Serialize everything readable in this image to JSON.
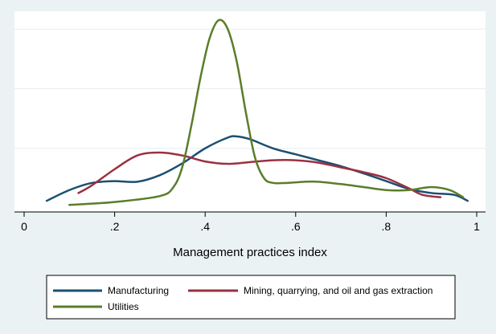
{
  "chart_data": {
    "type": "line",
    "title": "",
    "xlabel": "Management practices index",
    "ylabel": "",
    "xlim": [
      0,
      1
    ],
    "ylim": [
      0,
      3.3
    ],
    "x_ticks": [
      0,
      0.2,
      0.4,
      0.6,
      0.8,
      1
    ],
    "x_tick_labels": [
      "0",
      ".2",
      ".4",
      ".6",
      ".8",
      "1"
    ],
    "y_gridlines": [
      1,
      2,
      3
    ],
    "grid": true,
    "legend_position": "bottom",
    "colors": {
      "background": "#eaf2f3",
      "plot_area": "#ffffff",
      "gridline": "#e6eef0"
    },
    "series": [
      {
        "name": "Manufacturing",
        "color": "#1b4f72",
        "x": [
          0.05,
          0.1,
          0.15,
          0.2,
          0.25,
          0.3,
          0.35,
          0.4,
          0.45,
          0.47,
          0.5,
          0.55,
          0.6,
          0.65,
          0.7,
          0.75,
          0.8,
          0.85,
          0.9,
          0.95,
          0.98
        ],
        "y": [
          0.12,
          0.3,
          0.42,
          0.45,
          0.44,
          0.55,
          0.75,
          1.0,
          1.18,
          1.2,
          1.15,
          1.0,
          0.9,
          0.8,
          0.7,
          0.58,
          0.45,
          0.32,
          0.25,
          0.22,
          0.12
        ]
      },
      {
        "name": "Mining, quarrying, and oil and gas extraction",
        "color": "#9b3040",
        "x": [
          0.12,
          0.15,
          0.2,
          0.25,
          0.3,
          0.35,
          0.4,
          0.45,
          0.5,
          0.55,
          0.6,
          0.65,
          0.7,
          0.75,
          0.8,
          0.85,
          0.88,
          0.92
        ],
        "y": [
          0.25,
          0.38,
          0.65,
          0.88,
          0.93,
          0.88,
          0.78,
          0.74,
          0.77,
          0.8,
          0.8,
          0.76,
          0.68,
          0.6,
          0.5,
          0.33,
          0.22,
          0.18
        ]
      },
      {
        "name": "Utilities",
        "color": "#5a7d2a",
        "x": [
          0.1,
          0.2,
          0.3,
          0.33,
          0.35,
          0.37,
          0.39,
          0.41,
          0.43,
          0.45,
          0.47,
          0.49,
          0.51,
          0.53,
          0.55,
          0.58,
          0.62,
          0.65,
          0.7,
          0.75,
          0.8,
          0.85,
          0.9,
          0.94,
          0.97
        ],
        "y": [
          0.05,
          0.1,
          0.2,
          0.35,
          0.7,
          1.4,
          2.2,
          2.85,
          3.15,
          3.0,
          2.45,
          1.6,
          0.85,
          0.5,
          0.42,
          0.42,
          0.44,
          0.44,
          0.4,
          0.35,
          0.3,
          0.3,
          0.35,
          0.3,
          0.18
        ]
      }
    ]
  }
}
